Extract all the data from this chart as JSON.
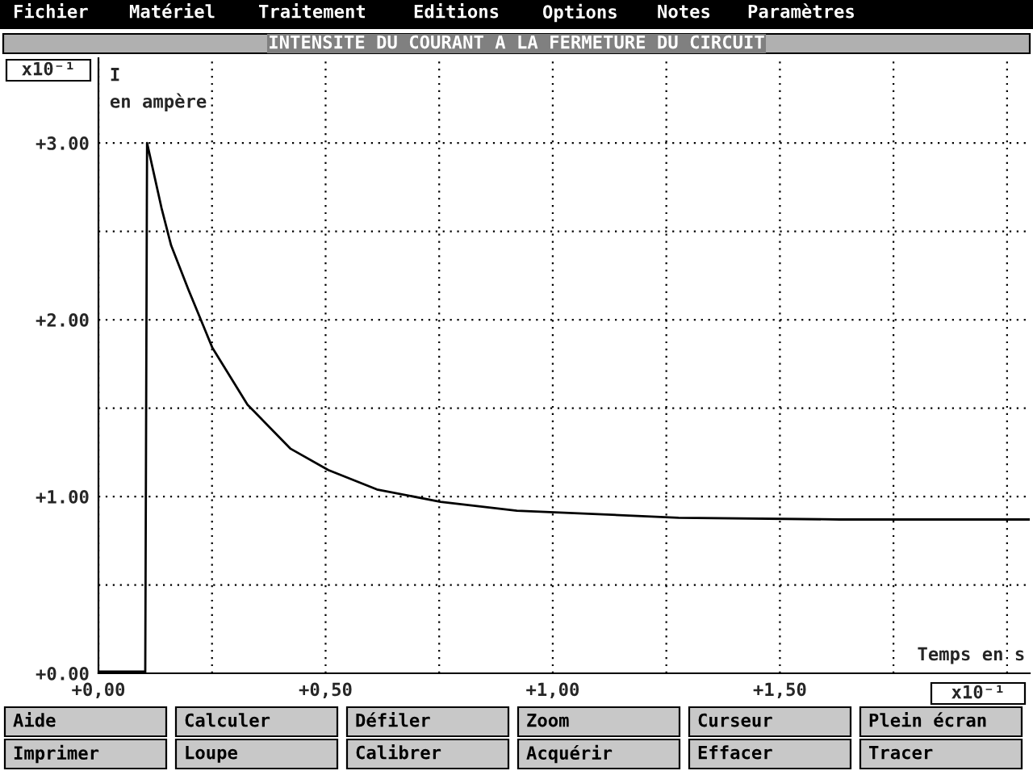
{
  "chart_data": {
    "type": "line",
    "title": "INTENSITE DU COURANT A LA FERMETURE DU CIRCUIT",
    "xlabel": "Temps en s",
    "ylabel": "I\nen ampère",
    "x": [
      0,
      0.05,
      0.1,
      0.103,
      0.107,
      0.139,
      0.16,
      0.198,
      0.251,
      0.328,
      0.423,
      0.506,
      0.613,
      0.753,
      0.921,
      1.277,
      1.632,
      2.05
    ],
    "series": [
      {
        "color": "#000000",
        "values": [
          0.01,
          0.01,
          0.01,
          0.0,
          3.0,
          2.63,
          2.42,
          2.17,
          1.84,
          1.52,
          1.27,
          1.15,
          1.04,
          0.97,
          0.92,
          0.88,
          0.87,
          0.87
        ]
      }
    ],
    "xlim": [
      0,
      2.05
    ],
    "ylim": [
      0,
      3.48
    ],
    "xticks": [
      {
        "value": 0,
        "label": "+0,00"
      },
      {
        "value": 0.25,
        "label": null
      },
      {
        "value": 0.5,
        "label": "+0,50"
      },
      {
        "value": 0.75,
        "label": null
      },
      {
        "value": 1.0,
        "label": "+1,00"
      },
      {
        "value": 1.25,
        "label": null
      },
      {
        "value": 1.5,
        "label": "+1,50"
      },
      {
        "value": 1.75,
        "label": null
      },
      {
        "value": 2.0,
        "label": null
      }
    ],
    "yticks": [
      {
        "value": 0,
        "label": "+0.00"
      },
      {
        "value": 0.5,
        "label": null
      },
      {
        "value": 1,
        "label": "+1.00"
      },
      {
        "value": 1.5,
        "label": null
      },
      {
        "value": 2,
        "label": "+2.00"
      },
      {
        "value": 2.5,
        "label": null
      },
      {
        "value": 3,
        "label": "+3.00"
      }
    ],
    "grid": true,
    "line_style": "solid",
    "marker": "none",
    "legend": false,
    "annotations": [
      "x10⁻¹",
      "x10⁻¹",
      "Fichier",
      "Matériel",
      "Traitement",
      "Editions",
      "Options",
      "Notes",
      "Paramètres",
      "Aide",
      "Calculer",
      "Défiler",
      "Zoom",
      "Curseur",
      "Plein écran",
      "Imprimer",
      "Loupe",
      "Calibrer",
      "Acquérir",
      "Effacer",
      "Tracer"
    ]
  }
}
